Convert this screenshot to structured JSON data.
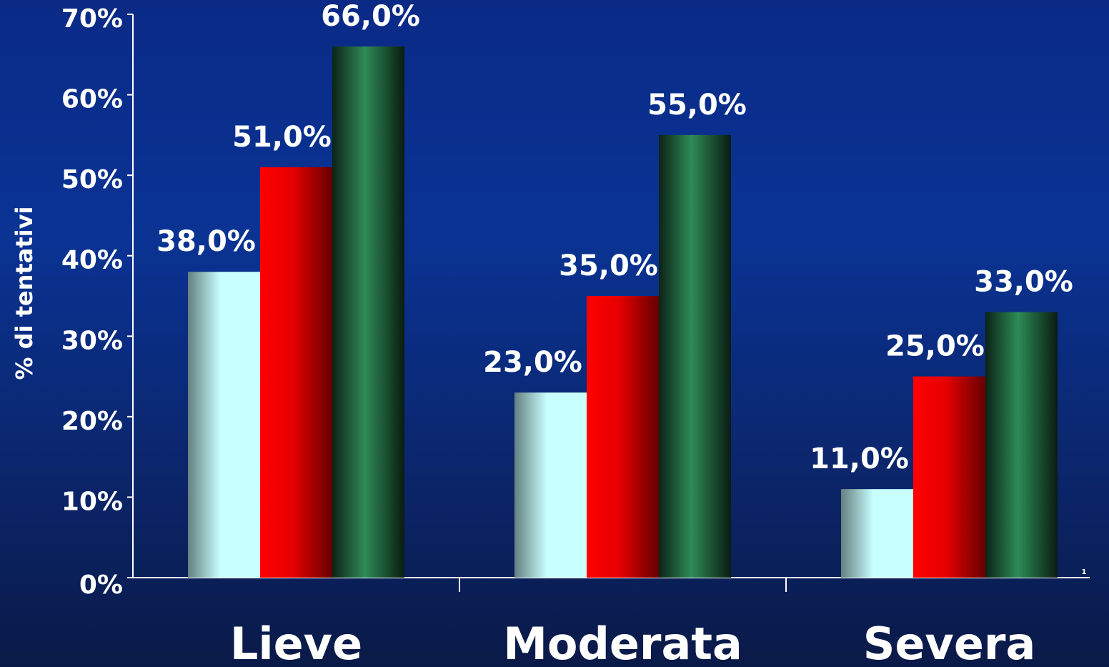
{
  "chart_data": {
    "type": "bar",
    "ylabel": "% di tentativi",
    "annotation": "1",
    "categories": [
      "Lieve",
      "Moderata",
      "Severa"
    ],
    "series": [
      {
        "color": "#c8ffff",
        "values": [
          38,
          23,
          11
        ],
        "value_labels": [
          "38,0%",
          "23,0%",
          "11,0%"
        ]
      },
      {
        "color": "#ff0000",
        "values": [
          51,
          35,
          25
        ],
        "value_labels": [
          "51,0%",
          "35,0%",
          "25,0%"
        ]
      },
      {
        "color": "#2e8b57",
        "values": [
          66,
          55,
          33
        ],
        "value_labels": [
          "66,0%",
          "55,0%",
          "33,0%"
        ]
      }
    ],
    "ylim": [
      0,
      70
    ],
    "yticks": [
      {
        "value": 0,
        "label": "0%"
      },
      {
        "value": 10,
        "label": "10%"
      },
      {
        "value": 20,
        "label": "20%"
      },
      {
        "value": 30,
        "label": "30%"
      },
      {
        "value": 40,
        "label": "40%"
      },
      {
        "value": 50,
        "label": "50%"
      },
      {
        "value": 60,
        "label": "60%"
      },
      {
        "value": 70,
        "label": "70%"
      }
    ],
    "grid": false
  }
}
